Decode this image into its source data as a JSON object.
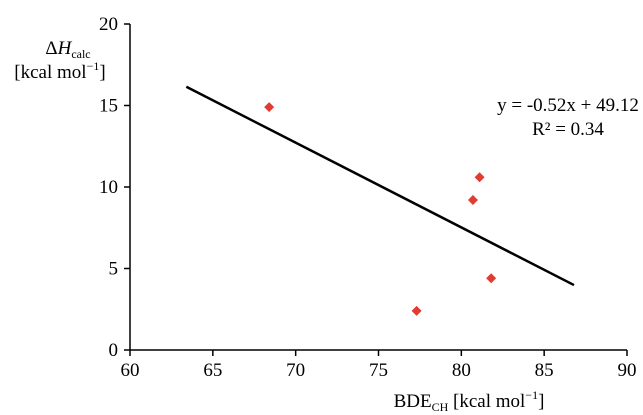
{
  "chart_data": {
    "type": "scatter",
    "xlim": [
      60,
      90
    ],
    "ylim": [
      0,
      20
    ],
    "x_ticks": [
      60,
      65,
      70,
      75,
      80,
      85,
      90
    ],
    "y_ticks": [
      0,
      5,
      10,
      15,
      20
    ],
    "grid": false,
    "points": [
      {
        "x": 68.4,
        "y": 14.9
      },
      {
        "x": 77.3,
        "y": 2.4
      },
      {
        "x": 80.7,
        "y": 9.2
      },
      {
        "x": 81.1,
        "y": 10.6
      },
      {
        "x": 81.8,
        "y": 4.4
      }
    ],
    "marker_color": "#e03c31",
    "trendline": {
      "slope": -0.52,
      "intercept": 49.12,
      "x_range": [
        63.4,
        86.8
      ],
      "color": "#000000"
    },
    "ylabel": {
      "prefix": "Δ",
      "main": "H",
      "sub": "calc",
      "line2": "[kcal mol",
      "sup": "−1",
      "close": "]"
    },
    "xlabel": {
      "main": "BDE",
      "sub": "CH",
      "unit": " [kcal mol",
      "sup": "−1",
      "close": "]"
    },
    "annotations": {
      "equation": "y = -0.52x + 49.12",
      "r2": "R² = 0.34"
    }
  }
}
